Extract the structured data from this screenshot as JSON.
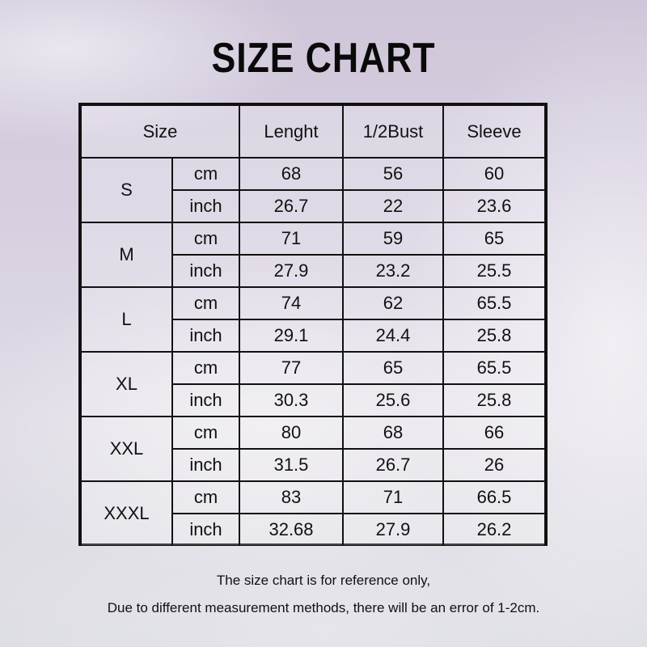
{
  "title": "SIZE CHART",
  "table": {
    "headers": {
      "size": "Size",
      "length": "Lenght",
      "bust": "1/2Bust",
      "sleeve": "Sleeve"
    },
    "sizes": [
      {
        "size": "S",
        "rows": [
          {
            "unit": "cm",
            "length": "68",
            "bust": "56",
            "sleeve": "60"
          },
          {
            "unit": "inch",
            "length": "26.7",
            "bust": "22",
            "sleeve": "23.6"
          }
        ]
      },
      {
        "size": "M",
        "rows": [
          {
            "unit": "cm",
            "length": "71",
            "bust": "59",
            "sleeve": "65"
          },
          {
            "unit": "inch",
            "length": "27.9",
            "bust": "23.2",
            "sleeve": "25.5"
          }
        ]
      },
      {
        "size": "L",
        "rows": [
          {
            "unit": "cm",
            "length": "74",
            "bust": "62",
            "sleeve": "65.5"
          },
          {
            "unit": "inch",
            "length": "29.1",
            "bust": "24.4",
            "sleeve": "25.8"
          }
        ]
      },
      {
        "size": "XL",
        "rows": [
          {
            "unit": "cm",
            "length": "77",
            "bust": "65",
            "sleeve": "65.5"
          },
          {
            "unit": "inch",
            "length": "30.3",
            "bust": "25.6",
            "sleeve": "25.8"
          }
        ]
      },
      {
        "size": "XXL",
        "rows": [
          {
            "unit": "cm",
            "length": "80",
            "bust": "68",
            "sleeve": "66"
          },
          {
            "unit": "inch",
            "length": "31.5",
            "bust": "26.7",
            "sleeve": "26"
          }
        ]
      },
      {
        "size": "XXXL",
        "rows": [
          {
            "unit": "cm",
            "length": "83",
            "bust": "71",
            "sleeve": "66.5"
          },
          {
            "unit": "inch",
            "length": "32.68",
            "bust": "27.9",
            "sleeve": "26.2"
          }
        ]
      }
    ]
  },
  "footer": {
    "line1": "The size chart is for reference only,",
    "line2": "Due to different measurement methods, there will be an error of 1-2cm."
  }
}
